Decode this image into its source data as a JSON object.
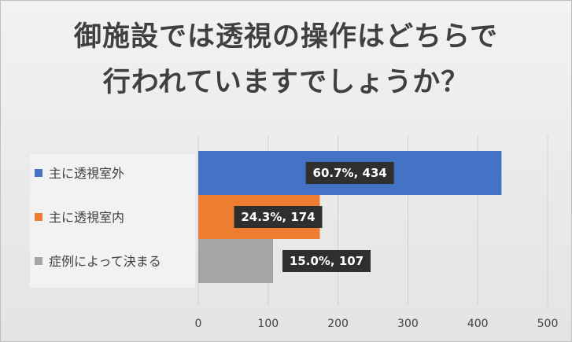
{
  "chart_data": {
    "type": "bar",
    "orientation": "horizontal",
    "title": [
      "御施設では透視の操作はどちらで",
      "行われていますでしょうか？"
    ],
    "categories": [
      "主に透視室外",
      "主に透視室内",
      "症例によって決まる"
    ],
    "values": [
      434,
      174,
      107
    ],
    "data_labels": [
      "60.7%, 434",
      "24.3%, 174",
      "15.0%, 107"
    ],
    "colors": [
      "#4472C4",
      "#ED7D31",
      "#A5A5A5"
    ],
    "xlim": [
      0,
      500
    ],
    "xticks": [
      "0",
      "100",
      "200",
      "300",
      "400",
      "500"
    ],
    "grid": true,
    "legend": "left"
  }
}
